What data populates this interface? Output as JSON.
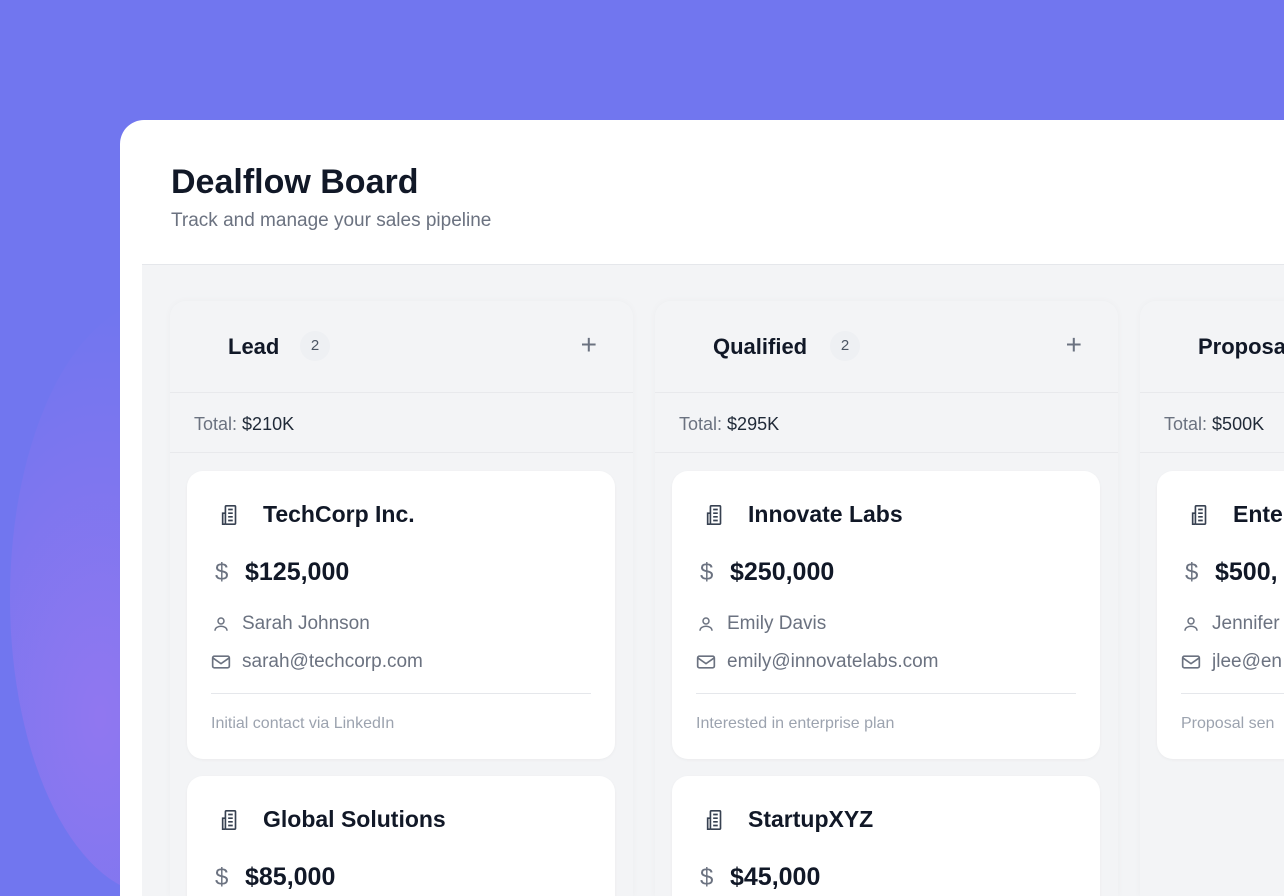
{
  "header": {
    "title": "Dealflow Board",
    "subtitle": "Track and manage your sales pipeline"
  },
  "colors": {
    "background": "#7176ef",
    "board": "#f3f4f6",
    "text": "#111827"
  },
  "columns": [
    {
      "name": "Lead",
      "count": "2",
      "total_label": "Total:",
      "total": "$210K",
      "add_icon": "plus-icon",
      "cards": [
        {
          "company": "TechCorp Inc.",
          "amount": "$125,000",
          "contact": "Sarah Johnson",
          "email": "sarah@techcorp.com",
          "note": "Initial contact via LinkedIn"
        },
        {
          "company": "Global Solutions",
          "amount": "$85,000"
        }
      ]
    },
    {
      "name": "Qualified",
      "count": "2",
      "total_label": "Total:",
      "total": "$295K",
      "add_icon": "plus-icon",
      "cards": [
        {
          "company": "Innovate Labs",
          "amount": "$250,000",
          "contact": "Emily Davis",
          "email": "emily@innovatelabs.com",
          "note": "Interested in enterprise plan"
        },
        {
          "company": "StartupXYZ",
          "amount": "$45,000"
        }
      ]
    },
    {
      "name": "Proposa",
      "total_label": "Total:",
      "total": "$500K",
      "cards": [
        {
          "company": "Ente",
          "amount": "$500,",
          "contact": "Jennifer",
          "email": "jlee@en",
          "note": "Proposal sen"
        }
      ]
    }
  ]
}
